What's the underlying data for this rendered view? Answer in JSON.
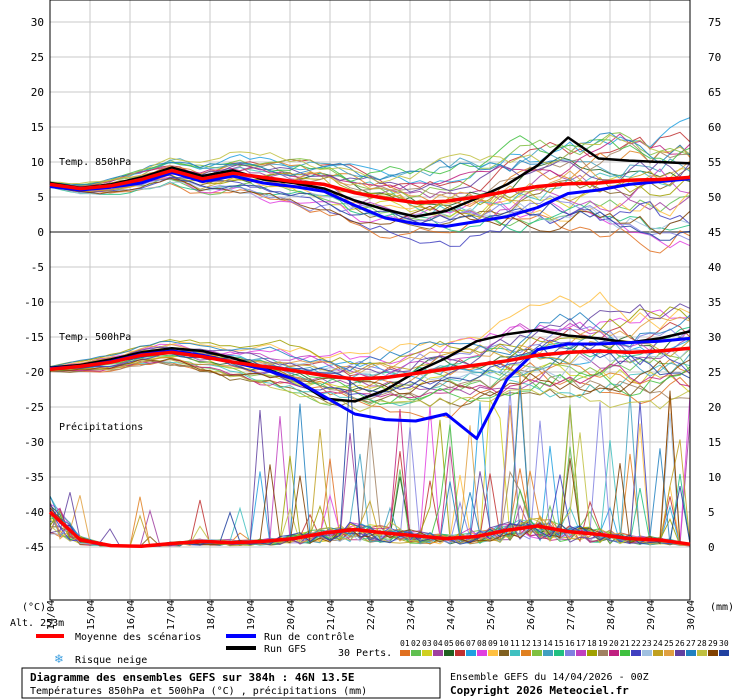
{
  "chart_data": {
    "type": "line",
    "title": "Diagramme des ensembles GEFS sur 384h : 46N 13.5E",
    "subtitle": "Températures 850hPa et 500hPa (°C) , précipitations (mm)",
    "run_label": "Ensemble GEFS du 14/04/2026 - 00Z",
    "copyright": "Copyright 2026 Meteociel.fr",
    "left_axis": {
      "unit": "(°C)",
      "ticks": [
        "30",
        "25",
        "20",
        "15",
        "10",
        "5",
        "0",
        "-5",
        "-10",
        "-15",
        "-20",
        "-25",
        "-30",
        "-35",
        "-40",
        "-45"
      ],
      "ylim": [
        -45,
        30
      ]
    },
    "right_axis": {
      "unit": "(mm)",
      "ticks": [
        "75",
        "70",
        "65",
        "60",
        "55",
        "50",
        "45",
        "40",
        "35",
        "30",
        "25",
        "20",
        "15",
        "10",
        "5",
        "0"
      ],
      "ylim": [
        0,
        75
      ]
    },
    "x_labels": [
      "14/04",
      "15/04",
      "16/04",
      "17/04",
      "18/04",
      "19/04",
      "20/04",
      "21/04",
      "22/04",
      "23/04",
      "24/04",
      "25/04",
      "26/04",
      "27/04",
      "28/04",
      "29/04",
      "30/04"
    ],
    "panel_labels": {
      "t850": "Temp. 850hPa",
      "t500": "Temp. 500hPa",
      "precip": "Précipitations"
    },
    "altitude_label": "Alt. 253m",
    "mean_850": [
      6.8,
      6.2,
      6.6,
      7.5,
      8.8,
      7.6,
      8.4,
      7.8,
      7.2,
      6.8,
      5.6,
      4.8,
      4.2,
      4.4,
      5.0,
      5.8,
      6.5,
      6.9,
      7.0,
      7.4,
      7.5,
      7.8
    ],
    "control_850": [
      6.5,
      6.0,
      6.4,
      7.0,
      8.5,
      7.2,
      8.0,
      7.0,
      6.5,
      5.8,
      3.8,
      2.0,
      1.2,
      0.8,
      1.5,
      2.2,
      3.5,
      5.5,
      6.0,
      6.8,
      7.2,
      7.6
    ],
    "gfs_850": [
      7.0,
      6.3,
      6.8,
      7.8,
      9.2,
      8.0,
      8.8,
      7.5,
      7.0,
      6.2,
      4.5,
      3.2,
      2.2,
      3.0,
      4.8,
      6.8,
      9.5,
      13.5,
      10.5,
      10.2,
      10.0,
      9.8
    ],
    "mean_500": [
      -19.6,
      -19.2,
      -18.6,
      -17.6,
      -17.2,
      -17.8,
      -18.6,
      -19.2,
      -19.8,
      -20.5,
      -21.0,
      -20.8,
      -20.2,
      -19.6,
      -19.0,
      -18.4,
      -17.6,
      -17.2,
      -17.0,
      -17.2,
      -17.0,
      -16.6
    ],
    "control_500": [
      -19.5,
      -19.2,
      -18.5,
      -17.5,
      -17.0,
      -17.6,
      -18.6,
      -19.6,
      -21.0,
      -23.5,
      -26.0,
      -26.8,
      -27.0,
      -26.0,
      -29.5,
      -21.0,
      -16.8,
      -16.0,
      -16.0,
      -15.8,
      -15.6,
      -15.2
    ],
    "gfs_500": [
      -19.4,
      -19.0,
      -18.2,
      -17.2,
      -16.6,
      -17.0,
      -18.0,
      -19.4,
      -21.0,
      -23.8,
      -24.2,
      -22.6,
      -20.0,
      -18.0,
      -15.6,
      -14.6,
      -14.0,
      -14.8,
      -15.2,
      -15.8,
      -15.2,
      -14.2
    ],
    "mean_precip": [
      5.0,
      1.0,
      0.2,
      0.1,
      0.5,
      0.8,
      0.6,
      0.8,
      1.2,
      2.0,
      2.5,
      2.0,
      1.6,
      1.2,
      1.5,
      2.4,
      3.0,
      2.2,
      1.8,
      1.2,
      1.0,
      0.4
    ],
    "series_colors": {
      "mean": "#ff0000",
      "control": "#0000ff",
      "gfs": "#000000"
    },
    "legend": {
      "mean": "Moyenne des scénarios",
      "control": "Run de contrôle",
      "gfs": "Run GFS",
      "snow": "Risque neige",
      "perts": "30 Perts."
    },
    "snow_icon": "snowflake-icon",
    "pert_labels": [
      "01",
      "02",
      "03",
      "04",
      "05",
      "06",
      "07",
      "08",
      "09",
      "10",
      "11",
      "12",
      "13",
      "14",
      "15",
      "16",
      "17",
      "18",
      "19",
      "20",
      "21",
      "22",
      "23",
      "24",
      "25",
      "26",
      "27",
      "28",
      "29",
      "30"
    ],
    "pert_colors": [
      "#e07020",
      "#60c050",
      "#d0d020",
      "#a040a0",
      "#206020",
      "#c03030",
      "#20a0e0",
      "#e040e0",
      "#ffc040",
      "#806020",
      "#40c0c0",
      "#e08020",
      "#80c040",
      "#40a0c0",
      "#20c080",
      "#8080e0",
      "#c040c0",
      "#a0a000",
      "#a08060",
      "#c02080",
      "#40c040",
      "#4040c0",
      "#a0c0e0",
      "#c0a020",
      "#e0a040",
      "#6040a0",
      "#2080c0",
      "#c0c040",
      "#804000",
      "#2040a0"
    ],
    "grid": true
  }
}
